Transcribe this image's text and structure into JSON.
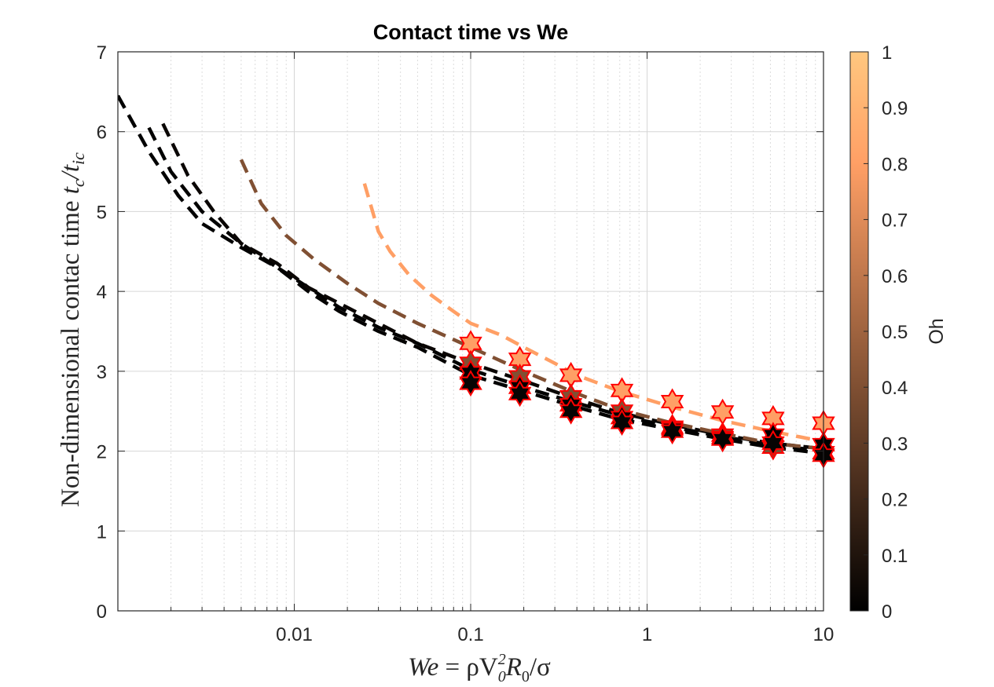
{
  "chart_data": {
    "type": "line",
    "title": "Contact time vs We",
    "xlabel": "We = ρV0²R0/σ",
    "xlabel_parts": {
      "a": "We",
      "b": " = ρV",
      "c": "0",
      "d": "2",
      "e": "R",
      "f": "0",
      "g": "/σ"
    },
    "ylabel": "Non-dimensional contac time tc/tic",
    "ylabel_parts": {
      "a": "Non-dimensional contac time ",
      "b": "t",
      "c": "c",
      "d": "/t",
      "e": "ic"
    },
    "x_scale": "log",
    "xlim": [
      0.001,
      10
    ],
    "ylim": [
      0,
      7
    ],
    "x_ticks": [
      0.01,
      0.1,
      1,
      10
    ],
    "x_tick_labels": [
      "0.01",
      "0.1",
      "1",
      "10"
    ],
    "y_ticks": [
      0,
      1,
      2,
      3,
      4,
      5,
      6,
      7
    ],
    "y_tick_labels": [
      "0",
      "1",
      "2",
      "3",
      "4",
      "5",
      "6",
      "7"
    ],
    "grid": true,
    "colorbar": {
      "label": "Oh",
      "range": [
        0,
        1
      ],
      "ticks": [
        0,
        0.1,
        0.2,
        0.3,
        0.4,
        0.5,
        0.6,
        0.7,
        0.8,
        0.9,
        1
      ],
      "tick_labels": [
        "0",
        "0.1",
        "0.2",
        "0.3",
        "0.4",
        "0.5",
        "0.6",
        "0.7",
        "0.8",
        "0.9",
        "1"
      ],
      "colormap": "copper",
      "color_low": "#000000",
      "color_high": "#FFC77F"
    },
    "marker_edge_color": "#FF0000",
    "series": [
      {
        "oh": 0.0,
        "x": [
          0.001,
          0.0015,
          0.0022,
          0.003,
          0.005,
          0.008,
          0.012,
          0.018,
          0.03,
          0.05,
          0.1,
          0.2,
          0.4,
          0.7,
          1.4,
          2.7,
          5,
          10
        ],
        "y": [
          6.45,
          5.75,
          5.2,
          4.85,
          4.55,
          4.3,
          4.05,
          3.8,
          3.55,
          3.35,
          3.02,
          2.8,
          2.6,
          2.45,
          2.3,
          2.18,
          2.08,
          2.0
        ]
      },
      {
        "oh": 0.01,
        "x": [
          0.0015,
          0.002,
          0.003,
          0.005,
          0.008,
          0.012,
          0.018,
          0.03,
          0.05,
          0.1,
          0.2,
          0.4,
          0.7,
          1.4,
          2.7,
          5,
          10
        ],
        "y": [
          6.05,
          5.5,
          5.0,
          4.6,
          4.3,
          4.0,
          3.75,
          3.5,
          3.3,
          2.95,
          2.75,
          2.55,
          2.4,
          2.27,
          2.15,
          2.05,
          1.97
        ]
      },
      {
        "oh": 0.03,
        "x": [
          0.0018,
          0.0025,
          0.0035,
          0.005,
          0.008,
          0.012,
          0.018,
          0.03,
          0.05,
          0.1,
          0.2,
          0.4,
          0.7,
          1.4,
          2.7,
          5,
          10
        ],
        "y": [
          6.1,
          5.45,
          5.0,
          4.6,
          4.35,
          4.05,
          3.85,
          3.6,
          3.35,
          3.1,
          2.88,
          2.65,
          2.48,
          2.33,
          2.2,
          2.1,
          2.03
        ]
      },
      {
        "oh": 0.4,
        "x": [
          0.005,
          0.0065,
          0.009,
          0.013,
          0.02,
          0.03,
          0.05,
          0.1,
          0.2,
          0.4,
          0.7,
          1.4,
          2.7,
          5,
          10
        ],
        "y": [
          5.65,
          5.1,
          4.7,
          4.4,
          4.1,
          3.85,
          3.6,
          3.3,
          3.0,
          2.72,
          2.52,
          2.35,
          2.22,
          2.1,
          2.03
        ]
      },
      {
        "oh": 0.8,
        "x": [
          0.025,
          0.03,
          0.035,
          0.045,
          0.06,
          0.08,
          0.1,
          0.15,
          0.2,
          0.3,
          0.4,
          0.7,
          1.4,
          2.7,
          5,
          10
        ],
        "y": [
          5.35,
          4.75,
          4.5,
          4.2,
          3.95,
          3.75,
          3.6,
          3.45,
          3.3,
          3.1,
          2.95,
          2.75,
          2.55,
          2.38,
          2.25,
          2.12
        ]
      }
    ],
    "markers": [
      {
        "oh": 0.8,
        "x": [
          0.1,
          0.19,
          0.37,
          0.72,
          1.39,
          2.68,
          5.18,
          10
        ],
        "y": [
          3.35,
          3.15,
          2.95,
          2.76,
          2.62,
          2.49,
          2.41,
          2.35
        ]
      },
      {
        "oh": 0.4,
        "x": [
          0.1,
          0.19,
          0.37,
          0.72,
          1.39,
          2.68,
          5.18,
          10
        ],
        "y": [
          3.1,
          2.93,
          2.68,
          2.5,
          2.3,
          2.2,
          2.05,
          1.98
        ]
      },
      {
        "oh": 0.0,
        "x": [
          0.1,
          0.19,
          0.37,
          0.72,
          1.39,
          2.68,
          5.18,
          10
        ],
        "y": [
          2.98,
          2.8,
          2.58,
          2.42,
          2.28,
          2.17,
          2.2,
          2.08
        ]
      },
      {
        "oh": 0.02,
        "x": [
          0.1,
          0.19,
          0.37,
          0.72,
          1.39,
          2.68,
          5.18,
          10
        ],
        "y": [
          2.85,
          2.72,
          2.5,
          2.36,
          2.25,
          2.15,
          2.1,
          1.95
        ]
      }
    ]
  }
}
